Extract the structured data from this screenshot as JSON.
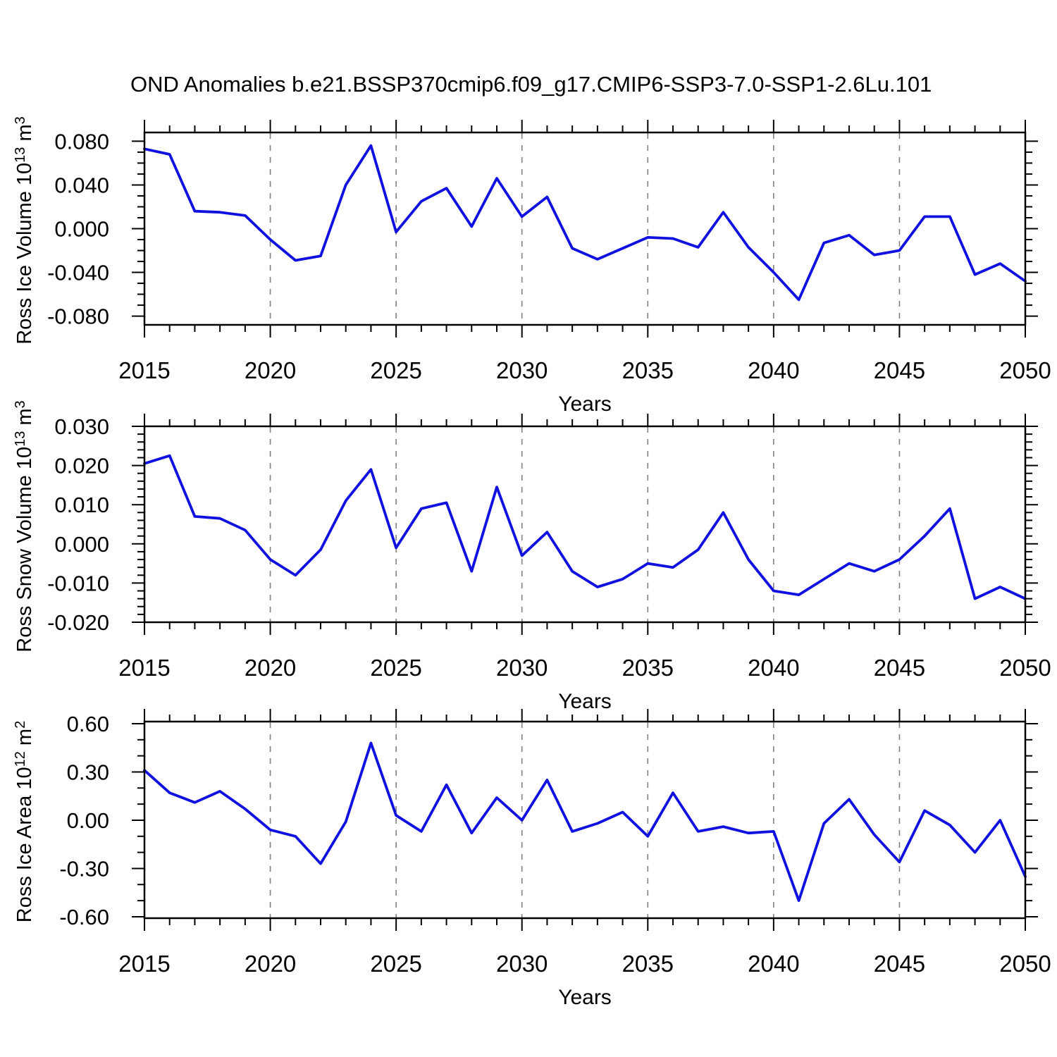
{
  "title": "OND Anomalies b.e21.BSSP370cmip6.f09_g17.CMIP6-SSP3-7.0-SSP1-2.6Lu.101",
  "colors": {
    "line": "#1010e0",
    "axis": "#000000",
    "grid": "#808080",
    "text": "#000000",
    "background": "#ffffff"
  },
  "x_axis": {
    "title": "Years",
    "start": 2015,
    "end": 2050,
    "major_tick_labels": [
      "2015",
      "2020",
      "2025",
      "2030",
      "2035",
      "2040",
      "2045",
      "2050"
    ],
    "minor_step_years": 1,
    "gridline_years": [
      2020,
      2025,
      2030,
      2035,
      2040,
      2045
    ]
  },
  "chart_data": [
    {
      "type": "line",
      "name": "ross-ice-volume",
      "ylabel_text": "Ross Ice Volume 10^13 m^3",
      "ylabel_parts": {
        "pre": "Ross Ice Volume 10",
        "sup1": "13",
        "mid": " m",
        "sup2": "3"
      },
      "xlabel": "Years",
      "ylim": [
        -0.088,
        0.088
      ],
      "ymajor_ticks": [
        0.08,
        0.04,
        0.0,
        -0.04,
        -0.08
      ],
      "ymajor_labels": [
        "0.080",
        "0.040",
        "0.000",
        "-0.040",
        "-0.080"
      ],
      "yminor_step": 0.01,
      "legend": "none",
      "grid": "vertical-dashed",
      "x": [
        2015,
        2016,
        2017,
        2018,
        2019,
        2020,
        2021,
        2022,
        2023,
        2024,
        2025,
        2026,
        2027,
        2028,
        2029,
        2030,
        2031,
        2032,
        2033,
        2034,
        2035,
        2036,
        2037,
        2038,
        2039,
        2040,
        2041,
        2042,
        2043,
        2044,
        2045,
        2046,
        2047,
        2048,
        2049,
        2050
      ],
      "values": [
        0.073,
        0.068,
        0.016,
        0.015,
        0.012,
        -0.01,
        -0.029,
        -0.025,
        0.04,
        0.076,
        -0.003,
        0.025,
        0.037,
        0.002,
        0.046,
        0.011,
        0.029,
        -0.018,
        -0.028,
        -0.018,
        -0.008,
        -0.009,
        -0.017,
        0.015,
        -0.017,
        -0.04,
        -0.065,
        -0.013,
        -0.006,
        -0.024,
        -0.02,
        0.011,
        0.011,
        -0.042,
        -0.032,
        -0.048
      ]
    },
    {
      "type": "line",
      "name": "ross-snow-volume",
      "ylabel_text": "Ross Snow Volume 10^13 m^3",
      "ylabel_parts": {
        "pre": "Ross Snow Volume 10",
        "sup1": "13",
        "mid": " m",
        "sup2": "3"
      },
      "xlabel": "Years",
      "ylim": [
        -0.02,
        0.03
      ],
      "ymajor_ticks": [
        0.03,
        0.02,
        0.01,
        0.0,
        -0.01,
        -0.02
      ],
      "ymajor_labels": [
        "0.030",
        "0.020",
        "0.010",
        "0.000",
        "-0.010",
        "-0.020"
      ],
      "yminor_step": 0.002,
      "legend": "none",
      "grid": "vertical-dashed",
      "x": [
        2015,
        2016,
        2017,
        2018,
        2019,
        2020,
        2021,
        2022,
        2023,
        2024,
        2025,
        2026,
        2027,
        2028,
        2029,
        2030,
        2031,
        2032,
        2033,
        2034,
        2035,
        2036,
        2037,
        2038,
        2039,
        2040,
        2041,
        2042,
        2043,
        2044,
        2045,
        2046,
        2047,
        2048,
        2049,
        2050
      ],
      "values": [
        0.0205,
        0.0225,
        0.007,
        0.0065,
        0.0035,
        -0.004,
        -0.008,
        -0.0015,
        0.011,
        0.019,
        -0.001,
        0.009,
        0.0105,
        -0.007,
        0.0145,
        -0.003,
        0.003,
        -0.007,
        -0.011,
        -0.009,
        -0.005,
        -0.006,
        -0.0015,
        0.008,
        -0.004,
        -0.012,
        -0.013,
        -0.009,
        -0.005,
        -0.007,
        -0.004,
        0.002,
        0.009,
        -0.014,
        -0.011,
        -0.014
      ]
    },
    {
      "type": "line",
      "name": "ross-ice-area",
      "ylabel_text": "Ross Ice Area 10^12 m^2",
      "ylabel_parts": {
        "pre": "Ross Ice Area 10",
        "sup1": "12",
        "mid": " m",
        "sup2": "2"
      },
      "xlabel": "Years",
      "ylim": [
        -0.609,
        0.613
      ],
      "ymajor_ticks": [
        0.6,
        0.3,
        0.0,
        -0.3,
        -0.6
      ],
      "ymajor_labels": [
        "0.60",
        "0.30",
        "0.00",
        "-0.30",
        "-0.60"
      ],
      "yminor_step": 0.1,
      "legend": "none",
      "grid": "vertical-dashed",
      "x": [
        2015,
        2016,
        2017,
        2018,
        2019,
        2020,
        2021,
        2022,
        2023,
        2024,
        2025,
        2026,
        2027,
        2028,
        2029,
        2030,
        2031,
        2032,
        2033,
        2034,
        2035,
        2036,
        2037,
        2038,
        2039,
        2040,
        2041,
        2042,
        2043,
        2044,
        2045,
        2046,
        2047,
        2048,
        2049,
        2050
      ],
      "values": [
        0.31,
        0.17,
        0.11,
        0.18,
        0.07,
        -0.06,
        -0.1,
        -0.27,
        -0.01,
        0.48,
        0.03,
        -0.07,
        0.22,
        -0.08,
        0.14,
        0.0,
        0.25,
        -0.07,
        -0.02,
        0.05,
        -0.1,
        0.17,
        -0.07,
        -0.04,
        -0.08,
        -0.07,
        -0.5,
        -0.02,
        0.13,
        -0.09,
        -0.26,
        0.06,
        -0.03,
        -0.2,
        0.0,
        -0.35
      ]
    }
  ]
}
